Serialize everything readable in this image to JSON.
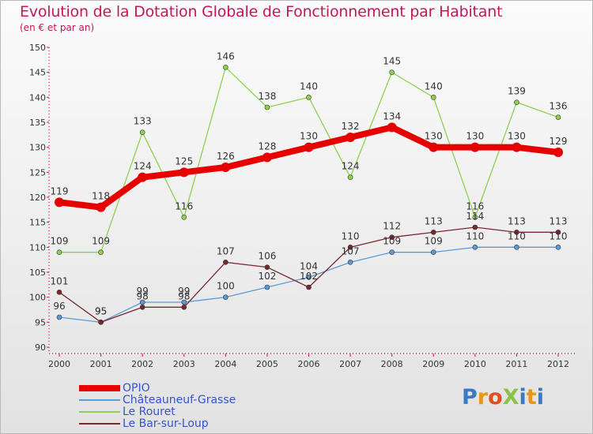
{
  "title": "Evolution de la Dotation Globale de Fonctionnement par Habitant",
  "subtitle": "(en € et par an)",
  "logo": {
    "text": "ProXiti",
    "colors": [
      "#3a79c4",
      "#e8961a",
      "#e04f1d",
      "#8bc34a",
      "#3a79c4",
      "#e8961a",
      "#3a79c4"
    ]
  },
  "colors": {
    "title": "#c2185b",
    "axis": "#c2185b",
    "legend_text": "#3355cc"
  },
  "chart_data": {
    "type": "line",
    "x": [
      "2000",
      "2001",
      "2002",
      "2003",
      "2004",
      "2005",
      "2006",
      "2007",
      "2008",
      "2009",
      "2010",
      "2011",
      "2012"
    ],
    "ylim": [
      90,
      150
    ],
    "yticks": [
      90,
      95,
      100,
      105,
      110,
      115,
      120,
      125,
      130,
      135,
      140,
      145,
      150
    ],
    "grid": false,
    "legend_position": "bottom-left",
    "series": [
      {
        "name": "OPIO",
        "color": "#e60000",
        "values": [
          119,
          118,
          124,
          125,
          126,
          128,
          130,
          132,
          134,
          130,
          130,
          130,
          129
        ]
      },
      {
        "name": "Châteauneuf-Grasse",
        "color": "#5b9bd5",
        "values": [
          96,
          95,
          99,
          99,
          100,
          102,
          104,
          107,
          109,
          109,
          110,
          110,
          110
        ]
      },
      {
        "name": "Le Rouret",
        "color": "#8fd14f",
        "values": [
          109,
          109,
          133,
          116,
          146,
          138,
          140,
          124,
          145,
          140,
          116,
          139,
          136
        ]
      },
      {
        "name": "Le Bar-sur-Loup",
        "color": "#7a2630",
        "values": [
          101,
          95,
          98,
          98,
          107,
          106,
          102,
          110,
          112,
          113,
          114,
          113,
          113
        ]
      }
    ]
  }
}
